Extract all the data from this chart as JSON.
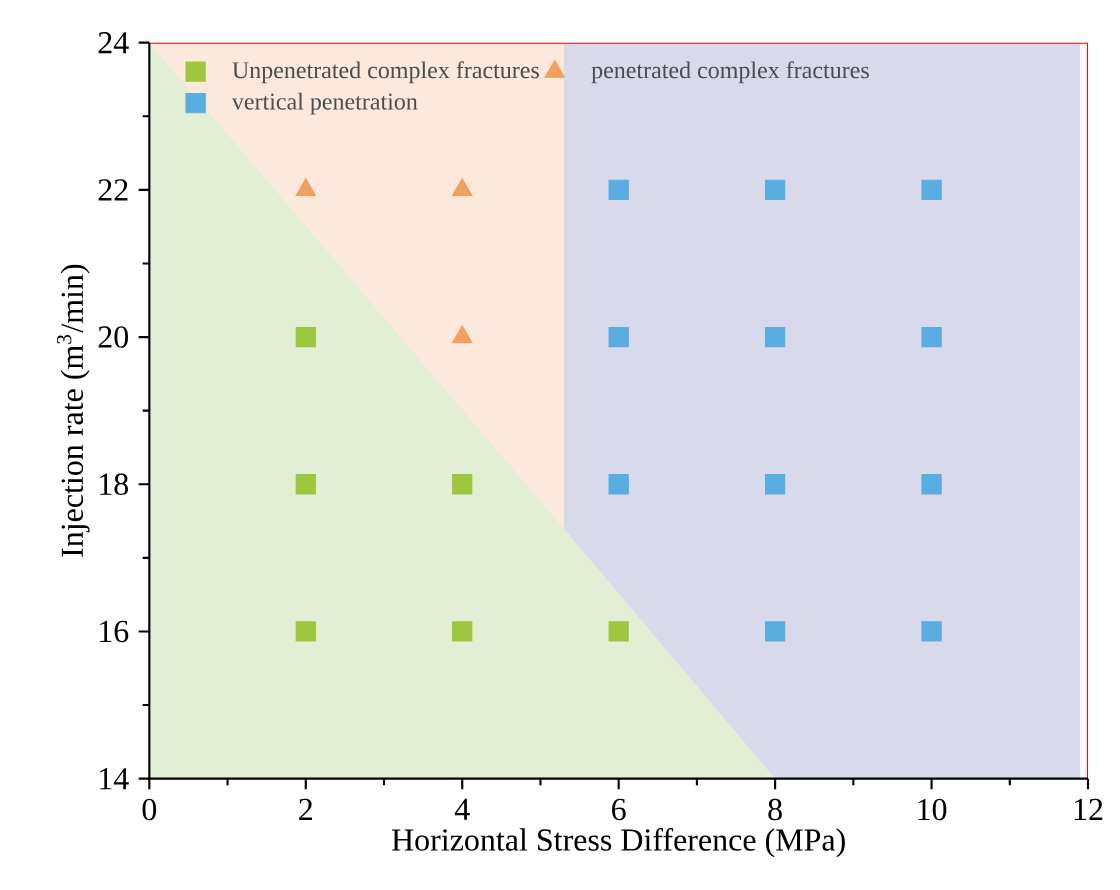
{
  "chart_data": {
    "type": "scatter",
    "xlabel": "Horizontal Stress Difference (MPa)",
    "ylabel": "Injection rate (m$^{3}$/min)",
    "xlim": [
      0,
      12
    ],
    "ylim": [
      14,
      24
    ],
    "xticks": [
      0,
      2,
      4,
      6,
      8,
      10,
      12
    ],
    "yticks": [
      14,
      16,
      18,
      20,
      22,
      24
    ],
    "legend": "top",
    "grid": false,
    "series": [
      {
        "type": "area",
        "color": "#fde9dc",
        "x": [
          0,
          5.3
        ],
        "values": [
          24,
          24
        ]
      },
      {
        "type": "area",
        "color": "#d9d9ec",
        "x": [
          5.3,
          11.9
        ],
        "values": [
          24,
          24
        ]
      },
      {
        "type": "area",
        "color": "#e2efd5",
        "x": [
          0,
          5.3,
          8
        ],
        "values": [
          24,
          17.4,
          14
        ]
      },
      {
        "name": "Unpenetrated complex fractures",
        "color": "#9dc73d",
        "marker": "square",
        "x": [
          2,
          2,
          4,
          2,
          4,
          6
        ],
        "values": [
          20,
          18,
          18,
          16,
          16,
          16
        ]
      },
      {
        "name": "penetrated complex fractures",
        "color": "#f0a060",
        "marker": "triangle",
        "x": [
          2,
          4,
          4
        ],
        "values": [
          22,
          22,
          20
        ]
      },
      {
        "name": "vertical penetration",
        "color": "#5aade0",
        "marker": "square",
        "x": [
          6,
          8,
          10,
          6,
          8,
          10,
          6,
          8,
          10,
          8,
          10
        ],
        "values": [
          22,
          22,
          22,
          20,
          20,
          20,
          18,
          18,
          18,
          16,
          16
        ]
      }
    ]
  }
}
